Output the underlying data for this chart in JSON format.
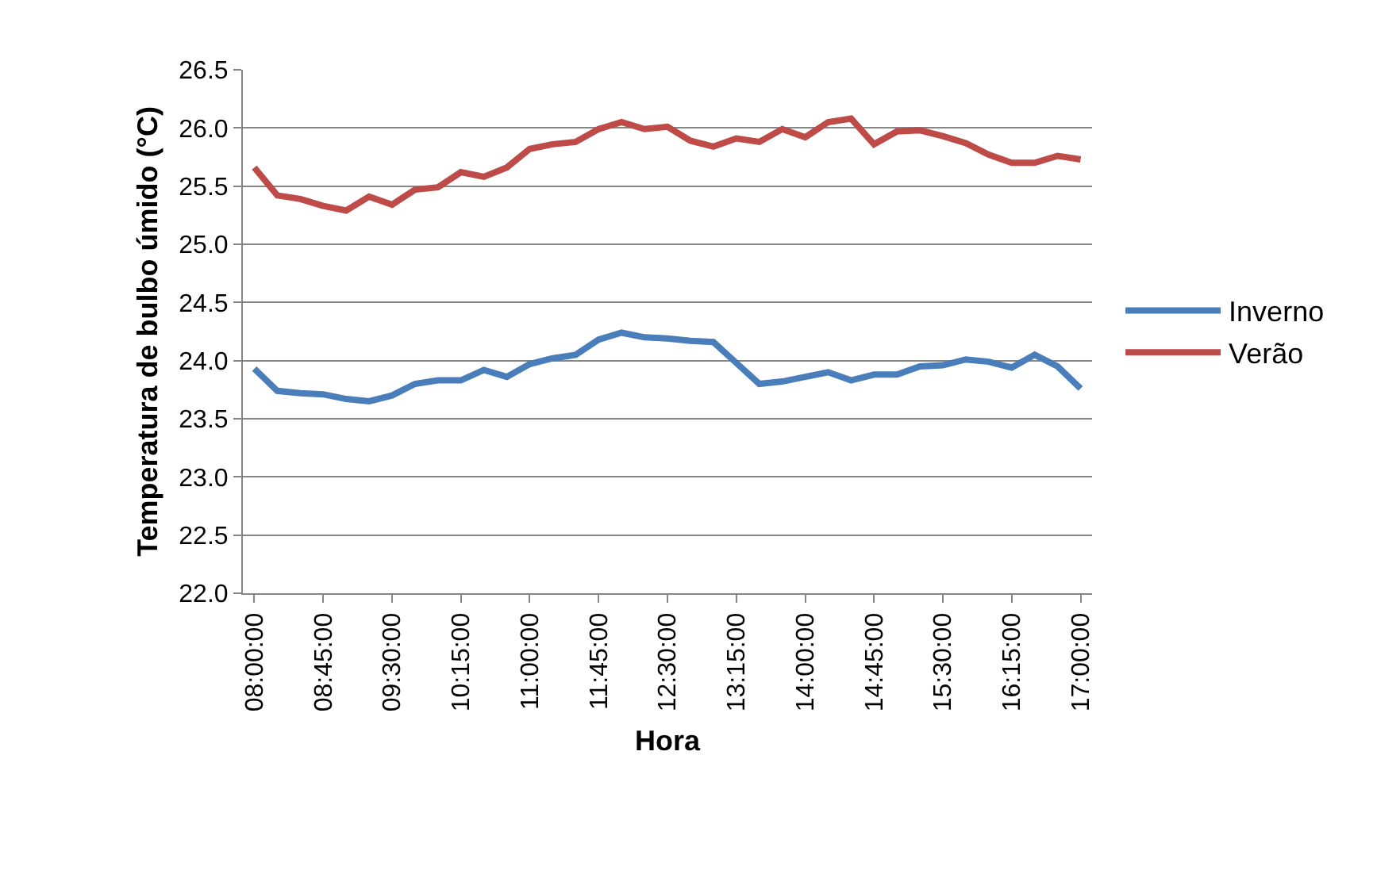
{
  "chart_data": {
    "type": "line",
    "xlabel": "Hora",
    "ylabel": "Temperatura de bulbo úmido (°C)",
    "x": [
      8,
      8.25,
      8.5,
      8.75,
      9,
      9.25,
      9.5,
      9.75,
      10,
      10.25,
      10.5,
      10.75,
      11,
      11.25,
      11.5,
      11.75,
      12,
      12.25,
      12.5,
      12.75,
      13,
      13.25,
      13.5,
      13.75,
      14,
      14.25,
      14.5,
      14.75,
      15,
      15.25,
      15.5,
      15.75,
      16,
      16.25,
      16.5,
      16.75,
      17
    ],
    "series": [
      {
        "name": "Inverno",
        "color": "#4a7ebb",
        "values": [
          23.93,
          23.74,
          23.72,
          23.71,
          23.67,
          23.65,
          23.7,
          23.8,
          23.83,
          23.83,
          23.92,
          23.86,
          23.97,
          24.02,
          24.05,
          24.18,
          24.24,
          24.2,
          24.19,
          24.17,
          24.16,
          23.98,
          23.8,
          23.82,
          23.86,
          23.9,
          23.83,
          23.88,
          23.88,
          23.95,
          23.96,
          24.01,
          23.99,
          23.94,
          24.05,
          23.95,
          23.76
        ]
      },
      {
        "name": "Verão",
        "color": "#be4b48",
        "values": [
          25.66,
          25.42,
          25.39,
          25.33,
          25.29,
          25.41,
          25.34,
          25.47,
          25.49,
          25.62,
          25.58,
          25.66,
          25.82,
          25.86,
          25.88,
          25.99,
          26.05,
          25.99,
          26.01,
          25.89,
          25.84,
          25.91,
          25.88,
          25.99,
          25.92,
          26.05,
          26.08,
          25.86,
          25.97,
          25.98,
          25.93,
          25.87,
          25.77,
          25.7,
          25.7,
          25.76,
          25.73
        ]
      }
    ],
    "xlim": [
      7.875,
      17.125
    ],
    "xticks": [
      {
        "value": 8,
        "label": "08:00:00"
      },
      {
        "value": 8.75,
        "label": "08:45:00"
      },
      {
        "value": 9.5,
        "label": "09:30:00"
      },
      {
        "value": 10.25,
        "label": "10:15:00"
      },
      {
        "value": 11,
        "label": "11:00:00"
      },
      {
        "value": 11.75,
        "label": "11:45:00"
      },
      {
        "value": 12.5,
        "label": "12:30:00"
      },
      {
        "value": 13.25,
        "label": "13:15:00"
      },
      {
        "value": 14,
        "label": "14:00:00"
      },
      {
        "value": 14.75,
        "label": "14:45:00"
      },
      {
        "value": 15.5,
        "label": "15:30:00"
      },
      {
        "value": 16.25,
        "label": "16:15:00"
      },
      {
        "value": 17,
        "label": "17:00:00"
      }
    ],
    "ylim": [
      22.0,
      26.5
    ],
    "yticks": [
      {
        "value": 22.0,
        "label": "22.0"
      },
      {
        "value": 22.5,
        "label": "22.5"
      },
      {
        "value": 23.0,
        "label": "23.0"
      },
      {
        "value": 23.5,
        "label": "23.5"
      },
      {
        "value": 24.0,
        "label": "24.0"
      },
      {
        "value": 24.5,
        "label": "24.5"
      },
      {
        "value": 25.0,
        "label": "25.0"
      },
      {
        "value": 25.5,
        "label": "25.5"
      },
      {
        "value": 26.0,
        "label": "26.0"
      },
      {
        "value": 26.5,
        "label": "26.5"
      }
    ],
    "grid": "y",
    "legend": "right",
    "marker": "none",
    "line_style": "solid"
  }
}
